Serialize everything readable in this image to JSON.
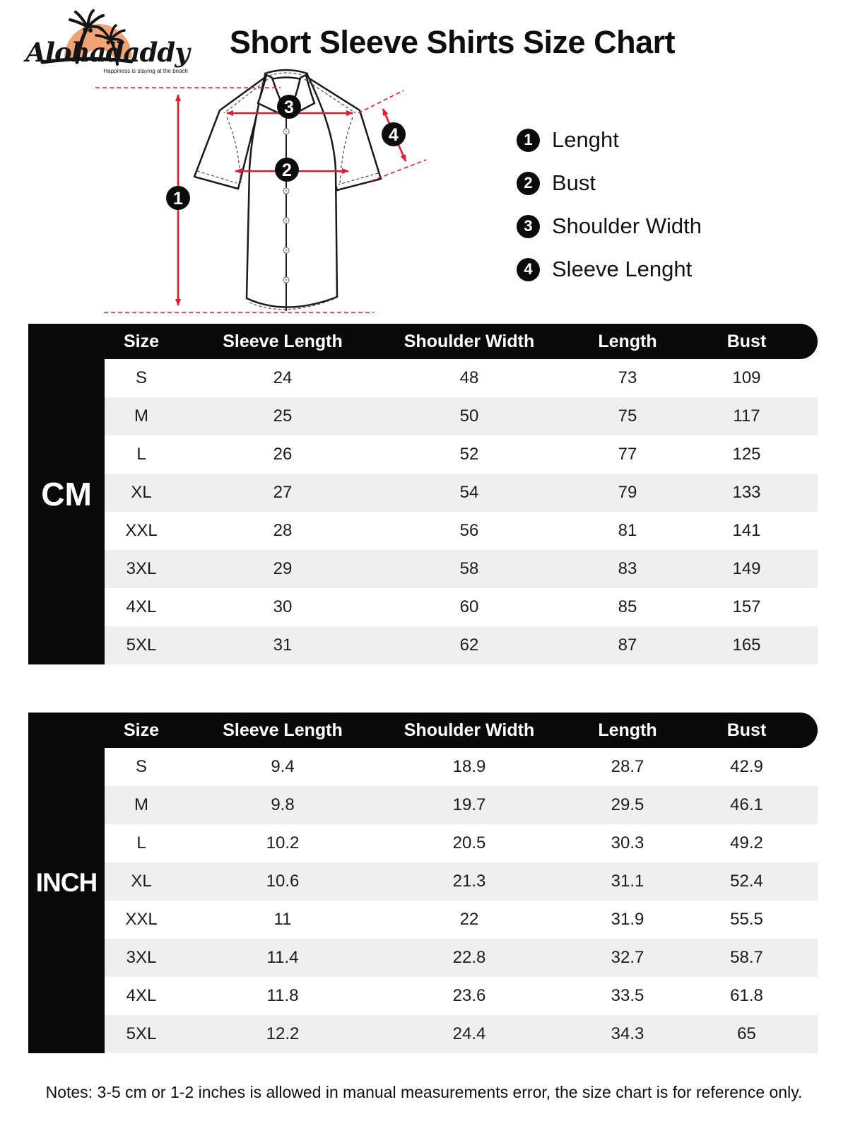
{
  "brand": {
    "name": "Alohadaddy",
    "tagline": "Happiness is staying at the beach"
  },
  "title": "Short Sleeve Shirts Size Chart",
  "legend": {
    "items": [
      {
        "num": "1",
        "label": "Lenght"
      },
      {
        "num": "2",
        "label": "Bust"
      },
      {
        "num": "3",
        "label": "Shoulder Width"
      },
      {
        "num": "4",
        "label": "Sleeve Lenght"
      }
    ]
  },
  "diagram": {
    "labels": [
      "1",
      "2",
      "3",
      "4"
    ]
  },
  "tables": [
    {
      "unit": "CM",
      "columns": [
        "Size",
        "Sleeve Length",
        "Shoulder Width",
        "Length",
        "Bust"
      ],
      "rows": [
        [
          "S",
          "24",
          "48",
          "73",
          "109"
        ],
        [
          "M",
          "25",
          "50",
          "75",
          "117"
        ],
        [
          "L",
          "26",
          "52",
          "77",
          "125"
        ],
        [
          "XL",
          "27",
          "54",
          "79",
          "133"
        ],
        [
          "XXL",
          "28",
          "56",
          "81",
          "141"
        ],
        [
          "3XL",
          "29",
          "58",
          "83",
          "149"
        ],
        [
          "4XL",
          "30",
          "60",
          "85",
          "157"
        ],
        [
          "5XL",
          "31",
          "62",
          "87",
          "165"
        ]
      ]
    },
    {
      "unit": "INCH",
      "columns": [
        "Size",
        "Sleeve Length",
        "Shoulder Width",
        "Length",
        "Bust"
      ],
      "rows": [
        [
          "S",
          "9.4",
          "18.9",
          "28.7",
          "42.9"
        ],
        [
          "M",
          "9.8",
          "19.7",
          "29.5",
          "46.1"
        ],
        [
          "L",
          "10.2",
          "20.5",
          "30.3",
          "49.2"
        ],
        [
          "XL",
          "10.6",
          "21.3",
          "31.1",
          "52.4"
        ],
        [
          "XXL",
          "11",
          "22",
          "31.9",
          "55.5"
        ],
        [
          "3XL",
          "11.4",
          "22.8",
          "32.7",
          "58.7"
        ],
        [
          "4XL",
          "11.8",
          "23.6",
          "33.5",
          "61.8"
        ],
        [
          "5XL",
          "12.2",
          "24.4",
          "34.3",
          "65"
        ]
      ]
    }
  ],
  "notes": "Notes: 3-5 cm or 1-2 inches is allowed in manual measurements error, the size chart is for reference only.",
  "colors": {
    "accent_red": "#e8192c",
    "logo_orange": "#f2a376",
    "table_black": "#0a0a0a",
    "row_alt": "#efefef"
  }
}
